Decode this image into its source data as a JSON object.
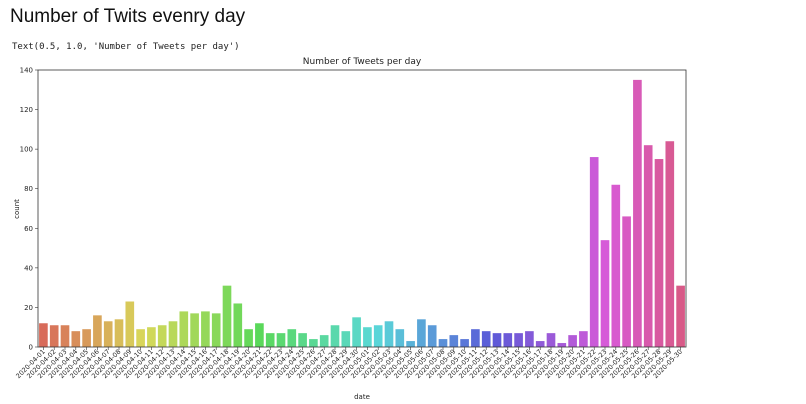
{
  "page": {
    "heading": "Number of Twits evenry day",
    "output_text": "Text(0.5, 1.0, 'Number of Tweets per day')"
  },
  "chart_data": {
    "type": "bar",
    "title": "Number of Tweets per day",
    "xlabel": "date",
    "ylabel": "count",
    "ylim": [
      0,
      140
    ],
    "yticks": [
      0,
      20,
      40,
      60,
      80,
      100,
      120,
      140
    ],
    "grid": false,
    "categories": [
      "2020-04-01",
      "2020-04-02",
      "2020-04-03",
      "2020-04-04",
      "2020-04-05",
      "2020-04-06",
      "2020-04-07",
      "2020-04-08",
      "2020-04-09",
      "2020-04-10",
      "2020-04-11",
      "2020-04-12",
      "2020-04-13",
      "2020-04-14",
      "2020-04-15",
      "2020-04-16",
      "2020-04-17",
      "2020-04-18",
      "2020-04-19",
      "2020-04-20",
      "2020-04-21",
      "2020-04-22",
      "2020-04-23",
      "2020-04-24",
      "2020-04-25",
      "2020-04-26",
      "2020-04-27",
      "2020-04-28",
      "2020-04-29",
      "2020-04-30",
      "2020-05-01",
      "2020-05-02",
      "2020-05-03",
      "2020-05-04",
      "2020-05-05",
      "2020-05-06",
      "2020-05-07",
      "2020-05-08",
      "2020-05-09",
      "2020-05-10",
      "2020-05-11",
      "2020-05-12",
      "2020-05-13",
      "2020-05-14",
      "2020-05-15",
      "2020-05-16",
      "2020-05-17",
      "2020-05-18",
      "2020-05-19",
      "2020-05-20",
      "2020-05-21",
      "2020-05-22",
      "2020-05-23",
      "2020-05-24",
      "2020-05-25",
      "2020-05-26",
      "2020-05-27",
      "2020-05-28",
      "2020-05-29",
      "2020-05-30"
    ],
    "values": [
      12,
      11,
      11,
      8,
      9,
      16,
      13,
      14,
      23,
      9,
      10,
      11,
      13,
      18,
      17,
      18,
      17,
      31,
      22,
      9,
      12,
      7,
      7,
      9,
      7,
      4,
      6,
      11,
      8,
      15,
      10,
      11,
      13,
      9,
      3,
      14,
      11,
      4,
      6,
      4,
      9,
      8,
      7,
      7,
      7,
      8,
      3,
      7,
      2,
      6,
      8,
      96,
      54,
      82,
      66,
      135,
      102,
      95,
      104,
      31
    ]
  }
}
